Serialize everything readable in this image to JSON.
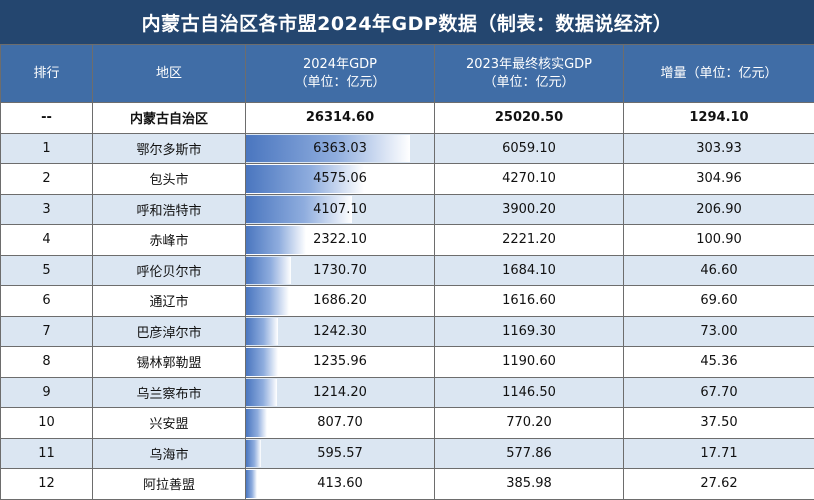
{
  "title": "内蒙古自治区各市盟2024年GDP数据（制表：数据说经济）",
  "headers": {
    "rank": "排行",
    "region": "地区",
    "gdp2024_line1": "2024年GDP",
    "gdp2024_line2": "（单位：亿元）",
    "gdp2023_line1": "2023年最终核实GDP",
    "gdp2023_line2": "（单位：亿元）",
    "increase": "增量（单位：亿元）"
  },
  "summary": {
    "rank": "--",
    "region": "内蒙古自治区",
    "gdp2024": "26314.60",
    "gdp2023": "25020.50",
    "increase": "1294.10"
  },
  "rows": [
    {
      "rank": "1",
      "region": "鄂尔多斯市",
      "gdp2024": "6363.03",
      "gdp2023": "6059.10",
      "increase": "303.93"
    },
    {
      "rank": "2",
      "region": "包头市",
      "gdp2024": "4575.06",
      "gdp2023": "4270.10",
      "increase": "304.96"
    },
    {
      "rank": "3",
      "region": "呼和浩特市",
      "gdp2024": "4107.10",
      "gdp2023": "3900.20",
      "increase": "206.90"
    },
    {
      "rank": "4",
      "region": "赤峰市",
      "gdp2024": "2322.10",
      "gdp2023": "2221.20",
      "increase": "100.90"
    },
    {
      "rank": "5",
      "region": "呼伦贝尔市",
      "gdp2024": "1730.70",
      "gdp2023": "1684.10",
      "increase": "46.60"
    },
    {
      "rank": "6",
      "region": "通辽市",
      "gdp2024": "1686.20",
      "gdp2023": "1616.60",
      "increase": "69.60"
    },
    {
      "rank": "7",
      "region": "巴彦淖尔市",
      "gdp2024": "1242.30",
      "gdp2023": "1169.30",
      "increase": "73.00"
    },
    {
      "rank": "8",
      "region": "锡林郭勒盟",
      "gdp2024": "1235.96",
      "gdp2023": "1190.60",
      "increase": "45.36"
    },
    {
      "rank": "9",
      "region": "乌兰察布市",
      "gdp2024": "1214.20",
      "gdp2023": "1146.50",
      "increase": "67.70"
    },
    {
      "rank": "10",
      "region": "兴安盟",
      "gdp2024": "807.70",
      "gdp2023": "770.20",
      "increase": "37.50"
    },
    {
      "rank": "11",
      "region": "乌海市",
      "gdp2024": "595.57",
      "gdp2023": "577.86",
      "increase": "17.71"
    },
    {
      "rank": "12",
      "region": "阿拉善盟",
      "gdp2024": "413.60",
      "gdp2023": "385.98",
      "increase": "27.62"
    }
  ],
  "colors": {
    "title_bg": "#24466f",
    "header_bg": "#406da6",
    "alt_row_bg": "#dbe6f2",
    "bar_color": "#4a76bf"
  }
}
